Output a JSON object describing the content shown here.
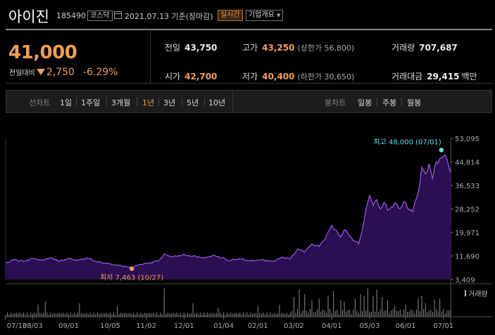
{
  "header": {
    "stock_name": "아이진",
    "stock_code": "185490",
    "market": "코스닥",
    "date_text": "2021.07.13 기준(장마감)",
    "realtime_button": "실시간",
    "company_info_button": "기업개요"
  },
  "summary": {
    "price": "41,000",
    "change_label": "전일대비",
    "change_value": "2,750",
    "change_pct": "-6.29%",
    "prev_close_label": "전일",
    "prev_close": "43,750",
    "high_label": "고가",
    "high": "43,250",
    "upper_limit": "(상한가 56,800)",
    "volume_label": "거래량",
    "volume": "707,687",
    "open_label": "시가",
    "open": "42,700",
    "low_label": "저가",
    "low": "40,400",
    "lower_limit": "(하한가 30,650)",
    "amount_label": "거래대금",
    "amount": "29,415",
    "amount_unit": "백만"
  },
  "tabs": {
    "line_label": "선차트",
    "periods": [
      "1일",
      "1주일",
      "3개월",
      "1년",
      "3년",
      "5년",
      "10년"
    ],
    "selected_period": "1년",
    "candle_label": "봉차트",
    "candles": [
      "일봉",
      "주봉",
      "월봉"
    ]
  },
  "colors": {
    "accent": "#f0a050",
    "line": "#9b5ce8",
    "area": "#2c0e52",
    "max_marker": "#5fe0e8",
    "min_marker": "#f0a050",
    "volume": "#8a8a8a"
  },
  "chart_data": {
    "type": "area",
    "title": "1년 선차트",
    "y_ticks": [
      "53,095",
      "44,814",
      "36,533",
      "28,252",
      "19,971",
      "11,690",
      "3,409"
    ],
    "ylim": [
      3409,
      53095
    ],
    "x_labels": [
      "07/13",
      "08/03",
      "09/01",
      "10/05",
      "11/02",
      "12/01",
      "01/04",
      "02/01",
      "03/02",
      "04/01",
      "05/03",
      "06/01",
      "07/01"
    ],
    "x_label_index": [
      0,
      15,
      35,
      58,
      78,
      99,
      121,
      140,
      160,
      181,
      202,
      222,
      243
    ],
    "n_days": 248,
    "anchors": [
      [
        0,
        9200
      ],
      [
        5,
        10400
      ],
      [
        10,
        9700
      ],
      [
        15,
        10900
      ],
      [
        20,
        10200
      ],
      [
        25,
        11100
      ],
      [
        30,
        9900
      ],
      [
        35,
        10800
      ],
      [
        40,
        10100
      ],
      [
        45,
        11000
      ],
      [
        50,
        9800
      ],
      [
        55,
        9200
      ],
      [
        60,
        8600
      ],
      [
        66,
        8100
      ],
      [
        70,
        7463
      ],
      [
        74,
        8700
      ],
      [
        80,
        9300
      ],
      [
        85,
        10100
      ],
      [
        88,
        12400
      ],
      [
        92,
        11300
      ],
      [
        98,
        12000
      ],
      [
        104,
        11700
      ],
      [
        110,
        11100
      ],
      [
        116,
        11900
      ],
      [
        120,
        11000
      ],
      [
        124,
        10100
      ],
      [
        130,
        10700
      ],
      [
        136,
        9900
      ],
      [
        142,
        10400
      ],
      [
        148,
        9800
      ],
      [
        154,
        11300
      ],
      [
        158,
        10700
      ],
      [
        162,
        14200
      ],
      [
        166,
        13100
      ],
      [
        170,
        16000
      ],
      [
        174,
        15000
      ],
      [
        178,
        18700
      ],
      [
        181,
        22500
      ],
      [
        183,
        20800
      ],
      [
        186,
        18400
      ],
      [
        188,
        20900
      ],
      [
        190,
        19500
      ],
      [
        193,
        17100
      ],
      [
        196,
        16000
      ],
      [
        198,
        21000
      ],
      [
        200,
        28000
      ],
      [
        202,
        33000
      ],
      [
        204,
        29500
      ],
      [
        206,
        31500
      ],
      [
        208,
        28200
      ],
      [
        210,
        30500
      ],
      [
        212,
        27800
      ],
      [
        214,
        29000
      ],
      [
        217,
        30200
      ],
      [
        219,
        28300
      ],
      [
        221,
        30800
      ],
      [
        223,
        28600
      ],
      [
        226,
        27300
      ],
      [
        228,
        32000
      ],
      [
        230,
        37500
      ],
      [
        231,
        43000
      ],
      [
        233,
        40500
      ],
      [
        235,
        44000
      ],
      [
        237,
        38700
      ],
      [
        239,
        44800
      ],
      [
        241,
        46000
      ],
      [
        243,
        46800
      ],
      [
        245,
        45800
      ],
      [
        247,
        41000
      ]
    ],
    "max": {
      "label": "최고 48,000 (07/01)",
      "value": 48000,
      "index": 243
    },
    "min": {
      "label": "최저 7,463 (10/27)",
      "value": 7463,
      "index": 70
    },
    "volume_label": "거래량",
    "volume_peaks": [
      [
        18,
        0.4
      ],
      [
        22,
        0.5
      ],
      [
        41,
        0.45
      ],
      [
        62,
        0.35
      ],
      [
        88,
        0.95
      ],
      [
        104,
        0.45
      ],
      [
        118,
        0.3
      ],
      [
        140,
        0.35
      ],
      [
        152,
        0.4
      ],
      [
        160,
        0.65
      ],
      [
        163,
        0.9
      ],
      [
        166,
        0.75
      ],
      [
        170,
        0.55
      ],
      [
        174,
        0.6
      ],
      [
        179,
        0.7
      ],
      [
        182,
        0.85
      ],
      [
        186,
        0.55
      ],
      [
        188,
        0.5
      ],
      [
        194,
        0.6
      ],
      [
        197,
        0.75
      ],
      [
        199,
        0.7
      ],
      [
        201,
        0.95
      ],
      [
        204,
        0.7
      ],
      [
        206,
        0.9
      ],
      [
        209,
        0.65
      ],
      [
        212,
        0.55
      ],
      [
        216,
        0.35
      ],
      [
        222,
        0.4
      ],
      [
        229,
        0.6
      ],
      [
        231,
        0.7
      ],
      [
        233,
        0.45
      ],
      [
        238,
        0.55
      ],
      [
        241,
        0.6
      ]
    ]
  }
}
